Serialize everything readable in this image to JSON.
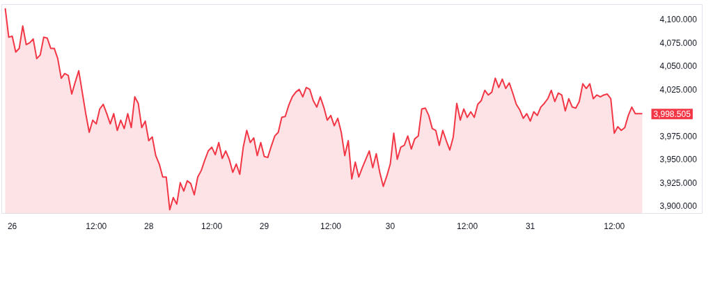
{
  "chart_data": {
    "type": "area",
    "categories": [
      null,
      null,
      "26",
      null,
      null,
      null,
      null,
      null,
      null,
      null,
      null,
      null,
      null,
      null,
      null,
      null,
      null,
      null,
      null,
      null,
      null,
      null,
      null,
      null,
      null,
      null,
      "12:00",
      null,
      null,
      null,
      null,
      null,
      null,
      null,
      null,
      null,
      null,
      null,
      null,
      null,
      null,
      "28",
      null,
      null,
      null,
      null,
      null,
      null,
      null,
      null,
      null,
      null,
      null,
      null,
      null,
      null,
      null,
      null,
      null,
      "12:00",
      null,
      null,
      null,
      null,
      null,
      null,
      null,
      null,
      null,
      null,
      null,
      null,
      null,
      null,
      "29",
      null,
      null,
      null,
      null,
      null,
      null,
      null,
      null,
      null,
      null,
      null,
      null,
      null,
      null,
      null,
      null,
      null,
      null,
      "12:00",
      null,
      null,
      null,
      null,
      null,
      null,
      null,
      null,
      null,
      null,
      null,
      null,
      null,
      null,
      null,
      null,
      "30",
      null,
      null,
      null,
      null,
      null,
      null,
      null,
      null,
      null,
      null,
      null,
      null,
      null,
      null,
      null,
      null,
      null,
      null,
      null,
      null,
      null,
      "12:00",
      null,
      null,
      null,
      null,
      null,
      null,
      null,
      null,
      null,
      null,
      null,
      null,
      null,
      null,
      null,
      null,
      null,
      "31",
      null,
      null,
      null,
      null,
      null,
      null,
      null,
      null,
      null,
      null,
      null,
      null,
      null,
      null,
      null,
      null,
      null,
      null,
      null,
      null,
      null,
      null,
      null,
      "12:00",
      null,
      null,
      null,
      null,
      null,
      null,
      null,
      null
    ],
    "series": [
      {
        "color": "#f23645",
        "values": [
          4112,
          4081,
          4082,
          4065,
          4069,
          4093,
          4073,
          4075,
          4079,
          4058,
          4062,
          4081,
          4080,
          4069,
          4069,
          4058,
          4037,
          4042,
          4040,
          4020,
          4033,
          4045,
          4022,
          3999,
          3979,
          3992,
          3988,
          4004,
          4009,
          3999,
          3988,
          3999,
          3981,
          3992,
          3983,
          3999,
          3984,
          4017,
          4010,
          3984,
          3991,
          3970,
          3974,
          3954,
          3945,
          3931,
          3931,
          3896,
          3909,
          3902,
          3925,
          3916,
          3927,
          3924,
          3912,
          3931,
          3938,
          3949,
          3959,
          3963,
          3955,
          3968,
          3951,
          3959,
          3950,
          3936,
          3945,
          3934,
          3963,
          3981,
          3968,
          3973,
          3954,
          3968,
          3953,
          3952,
          3964,
          3975,
          3979,
          3995,
          3996,
          4008,
          4017,
          4022,
          4025,
          4017,
          4027,
          4025,
          4013,
          4006,
          4017,
          4006,
          3992,
          3997,
          3986,
          3994,
          3979,
          3954,
          3970,
          3929,
          3947,
          3931,
          3941,
          3950,
          3959,
          3941,
          3956,
          3936,
          3921,
          3932,
          3945,
          3978,
          3950,
          3963,
          3965,
          3975,
          3961,
          3972,
          3975,
          4004,
          4005,
          3997,
          3983,
          3981,
          3965,
          3981,
          3970,
          3960,
          3974,
          4010,
          3992,
          4004,
          3995,
          4001,
          3995,
          4009,
          4013,
          4024,
          4019,
          4022,
          4037,
          4027,
          4036,
          4026,
          4032,
          4021,
          4009,
          4003,
          3994,
          3999,
          3991,
          4001,
          3997,
          4006,
          4010,
          4015,
          4024,
          4012,
          4021,
          4019,
          4002,
          4015,
          4006,
          4005,
          4012,
          4031,
          4026,
          4031,
          4015,
          4019,
          4017,
          4019,
          4020,
          4015,
          3978,
          3985,
          3981,
          3984,
          3997,
          4006,
          3999,
          3999,
          3999
        ]
      }
    ],
    "ylim": [
      3892,
      4116
    ],
    "yticks": [
      {
        "value": 3900,
        "label": "3,900.000"
      },
      {
        "value": 3925,
        "label": "3,925.000"
      },
      {
        "value": 3950,
        "label": "3,950.000"
      },
      {
        "value": 3975,
        "label": "3,975.000"
      },
      {
        "value": 4025,
        "label": "4,025.000"
      },
      {
        "value": 4050,
        "label": "4,050.000"
      },
      {
        "value": 4075,
        "label": "4,075.000"
      },
      {
        "value": 4100,
        "label": "4,100.000"
      }
    ],
    "annotations": [
      "3,998.505"
    ],
    "grid": false
  }
}
